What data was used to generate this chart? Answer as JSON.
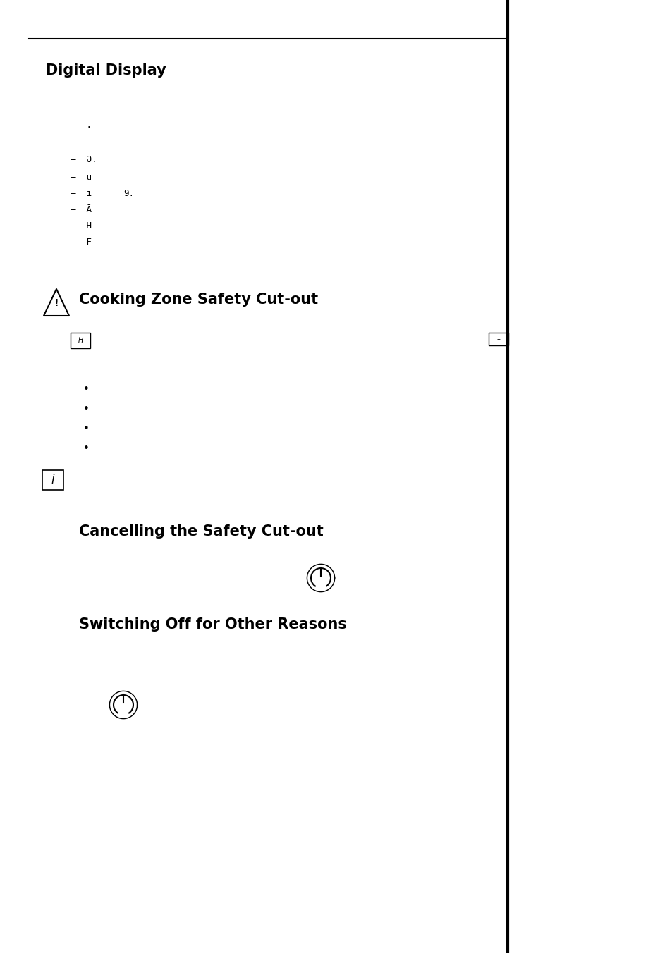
{
  "background_color": "#ffffff",
  "border_color": "#000000",
  "title1": "Digital Display",
  "section2_title": "Cooking Zone Safety Cut-out",
  "section3_title": "Cancelling the Safety Cut-out",
  "section4_title": "Switching Off for Other Reasons",
  "lcd_line1": "–   ·",
  "lcd_line2": "–  Ə.",
  "lcd_line3": "–  u",
  "lcd_line4_a": "–  ı",
  "lcd_line4_b": "9.",
  "lcd_line5": "–  Ā",
  "lcd_line6": "–  H",
  "lcd_line7": "–  F",
  "font_size_title": 14,
  "font_size_body": 10,
  "font_size_lcd": 9
}
